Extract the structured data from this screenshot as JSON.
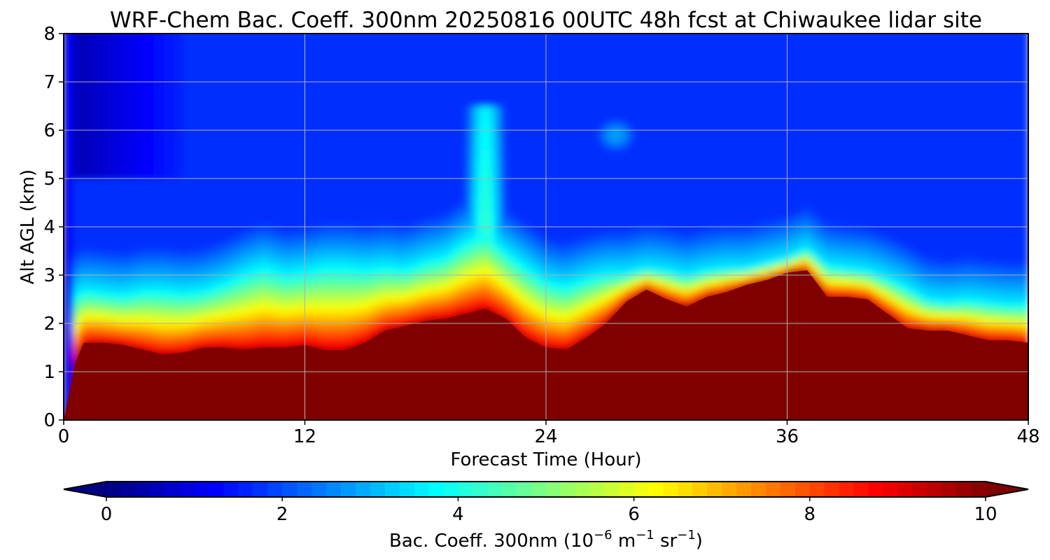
{
  "chart_data": {
    "type": "heatmap",
    "title": "WRF-Chem Bac. Coeff. 300nm  20250816 00UTC 48h fcst at Chiwaukee lidar site",
    "xlabel": "Forecast Time (Hour)",
    "ylabel": "Alt AGL (km)",
    "xlim": [
      0,
      48
    ],
    "ylim": [
      0,
      8
    ],
    "x_ticks": [
      "0",
      "12",
      "24",
      "36",
      "48"
    ],
    "y_ticks": [
      "0",
      "1",
      "2",
      "3",
      "4",
      "5",
      "6",
      "7",
      "8"
    ],
    "grid": true,
    "colormap": "jet",
    "colorbar": {
      "orientation": "horizontal",
      "location": "bottom",
      "extend": "both",
      "range": [
        0,
        10
      ],
      "ticks": [
        "0",
        "2",
        "4",
        "6",
        "8",
        "10"
      ],
      "label": "Bac. Coeff. 300nm  (10",
      "label_exp1": "−6",
      "label_mid": " m",
      "label_exp2": "−1",
      "label_mid2": " sr",
      "label_exp3": "−1",
      "label_end": ")"
    },
    "time_hours": [
      0,
      0.6,
      1,
      2,
      3,
      4,
      5,
      6,
      7,
      8,
      9,
      10,
      11,
      12,
      13,
      14,
      15,
      16,
      17,
      18,
      19,
      20,
      21,
      22,
      23,
      24,
      25,
      26,
      27,
      28,
      29,
      30,
      31,
      32,
      33,
      34,
      35,
      36,
      37,
      38,
      39,
      40,
      41,
      42,
      43,
      44,
      45,
      46,
      47,
      48
    ],
    "saturated_layer_top_km": [
      0,
      1.2,
      1.6,
      1.6,
      1.55,
      1.45,
      1.35,
      1.4,
      1.5,
      1.5,
      1.45,
      1.5,
      1.5,
      1.55,
      1.45,
      1.45,
      1.6,
      1.85,
      1.95,
      2.05,
      2.1,
      2.2,
      2.3,
      2.1,
      1.7,
      1.5,
      1.45,
      1.7,
      2.0,
      2.45,
      2.7,
      2.5,
      2.35,
      2.55,
      2.65,
      2.8,
      2.9,
      3.05,
      3.1,
      2.55,
      2.55,
      2.5,
      2.2,
      1.9,
      1.85,
      1.85,
      1.75,
      1.65,
      1.65,
      1.6
    ],
    "aerosol_layer_top_km": [
      0.2,
      2.6,
      2.7,
      2.65,
      2.6,
      2.7,
      2.7,
      2.65,
      2.7,
      2.85,
      3.05,
      3.2,
      3.05,
      3.1,
      3.2,
      3.2,
      3.15,
      3.2,
      3.15,
      3.3,
      3.4,
      3.7,
      3.9,
      3.5,
      3.2,
      2.9,
      2.8,
      2.95,
      3.05,
      3.05,
      3.15,
      3.1,
      3.0,
      3.1,
      3.15,
      3.15,
      3.25,
      3.35,
      3.55,
      3.2,
      3.15,
      3.1,
      2.95,
      2.75,
      2.5,
      2.45,
      2.5,
      2.45,
      2.4,
      2.4
    ],
    "plume": {
      "center_hour": 21,
      "top_km": 6.5,
      "peak_value": 4.3
    },
    "secondary_plume": {
      "center_hour": 27.5,
      "center_km": 5.9,
      "peak_value": 2.9
    },
    "background_aloft_value": 1.5,
    "surface_onset_hour": 0.5,
    "interior_value": 10
  }
}
